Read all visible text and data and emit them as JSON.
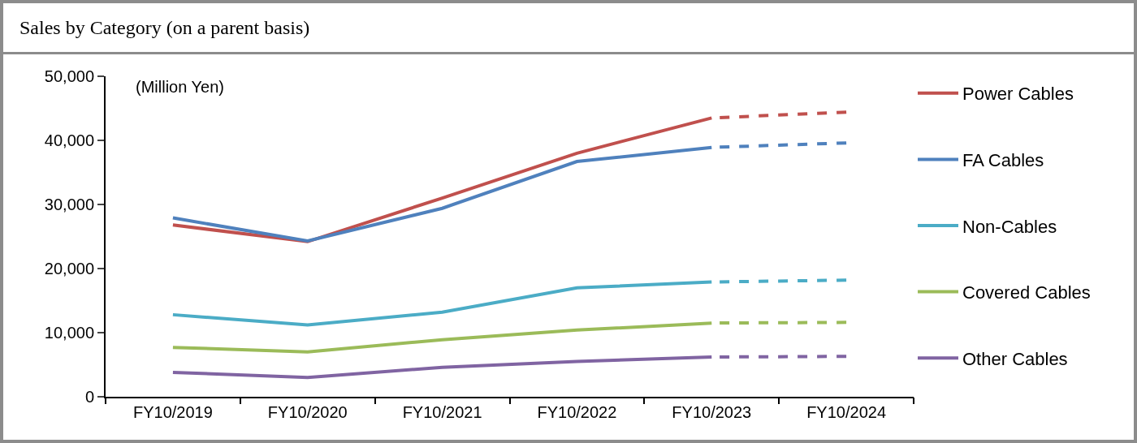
{
  "chart_data": {
    "type": "line",
    "title": "Sales by Category (on a parent basis)",
    "annotations": [
      "(Million Yen)"
    ],
    "categories": [
      "FY10/2019",
      "FY10/2020",
      "FY10/2021",
      "FY10/2022",
      "FY10/2023",
      "FY10/2024"
    ],
    "ylim": [
      0,
      50000
    ],
    "yticks": [
      {
        "value": 0,
        "label": "0"
      },
      {
        "value": 10000,
        "label": "10,000"
      },
      {
        "value": 20000,
        "label": "20,000"
      },
      {
        "value": 30000,
        "label": "30,000"
      },
      {
        "value": 40000,
        "label": "40,000"
      },
      {
        "value": 50000,
        "label": "50,000"
      }
    ],
    "grid": false,
    "legend": "right",
    "line_style": "solid",
    "series": [
      {
        "name": "Power Cables",
        "color": "#c0504d",
        "values": [
          26800,
          24200,
          31000,
          38000,
          43500,
          null
        ]
      },
      {
        "color": "#c0504d",
        "line_style": "dashed",
        "values": [
          null,
          null,
          null,
          null,
          43500,
          44400
        ]
      },
      {
        "name": "FA Cables",
        "color": "#4f81bd",
        "values": [
          27900,
          24300,
          29400,
          36700,
          38900,
          null
        ]
      },
      {
        "color": "#4f81bd",
        "line_style": "dashed",
        "values": [
          null,
          null,
          null,
          null,
          38900,
          39600
        ]
      },
      {
        "name": "Non-Cables",
        "color": "#4bacc6",
        "values": [
          12800,
          11200,
          13200,
          17000,
          17900,
          null
        ]
      },
      {
        "color": "#4bacc6",
        "line_style": "dashed",
        "values": [
          null,
          null,
          null,
          null,
          17900,
          18200
        ]
      },
      {
        "name": "Covered Cables",
        "color": "#9bbb59",
        "values": [
          7700,
          7000,
          8900,
          10400,
          11500,
          null
        ]
      },
      {
        "color": "#9bbb59",
        "line_style": "dashed",
        "values": [
          null,
          null,
          null,
          null,
          11500,
          11600
        ]
      },
      {
        "name": "Other Cables",
        "color": "#8064a2",
        "values": [
          3800,
          3000,
          4600,
          5500,
          6200,
          null
        ]
      },
      {
        "color": "#8064a2",
        "line_style": "dashed",
        "values": [
          null,
          null,
          null,
          null,
          6200,
          6300
        ]
      }
    ]
  }
}
